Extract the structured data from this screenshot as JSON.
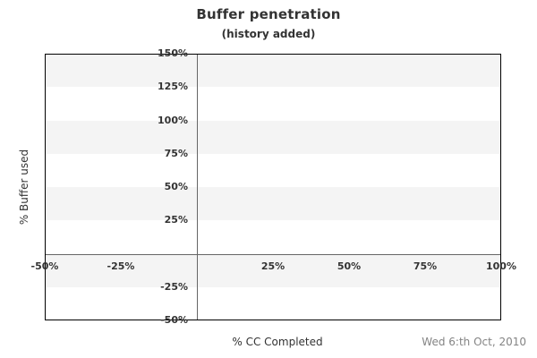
{
  "chart_data": {
    "type": "scatter",
    "title": "Buffer penetration",
    "subtitle": "(history added)",
    "xlabel": "% CC Completed",
    "ylabel": "% Buffer used",
    "xlim": [
      -50,
      100
    ],
    "ylim": [
      -50,
      150
    ],
    "xticks": [
      {
        "value": -50,
        "label": "-50%"
      },
      {
        "value": -25,
        "label": "-25%"
      },
      {
        "value": 25,
        "label": "25%"
      },
      {
        "value": 50,
        "label": "50%"
      },
      {
        "value": 75,
        "label": "75%"
      },
      {
        "value": 100,
        "label": "100%"
      }
    ],
    "yticks": [
      {
        "value": 150,
        "label": "150%"
      },
      {
        "value": 125,
        "label": "125%"
      },
      {
        "value": 100,
        "label": "100%"
      },
      {
        "value": 75,
        "label": "75%"
      },
      {
        "value": 50,
        "label": "50%"
      },
      {
        "value": 25,
        "label": "25%"
      },
      {
        "value": -25,
        "label": "-25%"
      },
      {
        "value": -50,
        "label": "-50%"
      }
    ],
    "grid_bands": [
      [
        125,
        150
      ],
      [
        75,
        100
      ],
      [
        25,
        50
      ],
      [
        -25,
        0
      ]
    ],
    "zero_lines": true,
    "grid": false,
    "legend": "none",
    "series": []
  },
  "footer": {
    "date": "Wed 6:th Oct, 2010"
  },
  "colors": {
    "background": "#ffffff",
    "band": "#f4f4f4",
    "plot_border": "#000000",
    "zero_line": "#666666",
    "text": "#333333",
    "date_text": "#848484"
  }
}
